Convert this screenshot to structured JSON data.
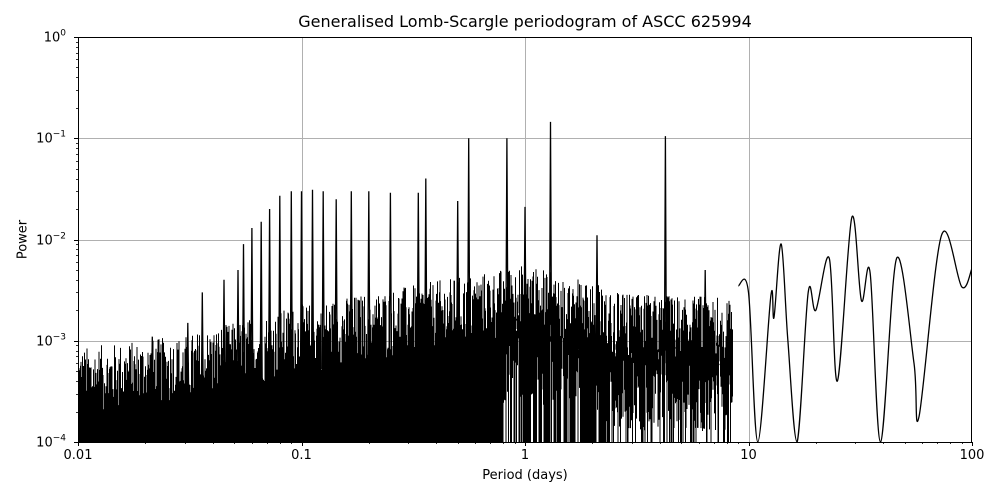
{
  "chart": {
    "title": "Generalised Lomb-Scargle periodogram of ASCC 625994",
    "xlabel": "Period (days)",
    "ylabel": "Power",
    "xticks": [
      {
        "value": 0.01,
        "label": "0.01"
      },
      {
        "value": 0.1,
        "label": "0.1"
      },
      {
        "value": 1,
        "label": "1"
      },
      {
        "value": 10,
        "label": "10"
      },
      {
        "value": 100,
        "label": "100"
      }
    ],
    "yticks": [
      {
        "value": 1,
        "base": "10",
        "exp": "0"
      },
      {
        "value": 0.1,
        "base": "10",
        "exp": "−1"
      },
      {
        "value": 0.01,
        "base": "10",
        "exp": "−2"
      },
      {
        "value": 0.001,
        "base": "10",
        "exp": "−3"
      },
      {
        "value": 0.0001,
        "base": "10",
        "exp": "−4"
      }
    ]
  },
  "chart_data": {
    "type": "line",
    "title": "Generalised Lomb-Scargle periodogram of ASCC 625994",
    "xlabel": "Period (days)",
    "ylabel": "Power",
    "xscale": "log",
    "yscale": "log",
    "xlim": [
      0.01,
      100
    ],
    "ylim": [
      0.0001,
      1
    ],
    "grid": true,
    "line_color": "#000000",
    "grid_color": "#b0b0b0",
    "noise_floor_trend": [
      {
        "period": 0.01,
        "power": 0.0003
      },
      {
        "period": 0.03,
        "power": 0.0004
      },
      {
        "period": 0.1,
        "power": 0.0008
      },
      {
        "period": 0.5,
        "power": 0.0015
      },
      {
        "period": 1.0,
        "power": 0.002
      },
      {
        "period": 3.0,
        "power": 0.001
      }
    ],
    "alias_peaks": [
      {
        "period": 0.0215,
        "power": 0.0011
      },
      {
        "period": 0.031,
        "power": 0.0015
      },
      {
        "period": 0.036,
        "power": 0.003
      },
      {
        "period": 0.045,
        "power": 0.004
      },
      {
        "period": 0.052,
        "power": 0.005
      },
      {
        "period": 0.055,
        "power": 0.009
      },
      {
        "period": 0.06,
        "power": 0.013
      },
      {
        "period": 0.066,
        "power": 0.015
      },
      {
        "period": 0.072,
        "power": 0.02
      },
      {
        "period": 0.08,
        "power": 0.027
      },
      {
        "period": 0.09,
        "power": 0.03
      },
      {
        "period": 0.1,
        "power": 0.03
      },
      {
        "period": 0.112,
        "power": 0.031
      },
      {
        "period": 0.125,
        "power": 0.03
      },
      {
        "period": 0.143,
        "power": 0.025
      },
      {
        "period": 0.167,
        "power": 0.03
      },
      {
        "period": 0.2,
        "power": 0.03
      },
      {
        "period": 0.25,
        "power": 0.029
      },
      {
        "period": 0.333,
        "power": 0.029
      },
      {
        "period": 0.36,
        "power": 0.04
      },
      {
        "period": 0.5,
        "power": 0.024
      },
      {
        "period": 0.56,
        "power": 0.1
      },
      {
        "period": 0.83,
        "power": 0.1
      },
      {
        "period": 1.0,
        "power": 0.021
      },
      {
        "period": 1.3,
        "power": 0.145
      },
      {
        "period": 2.1,
        "power": 0.011
      },
      {
        "period": 4.25,
        "power": 0.105
      },
      {
        "period": 6.4,
        "power": 0.005
      }
    ],
    "smooth_segment": [
      {
        "period": 9.0,
        "power": 0.0035
      },
      {
        "period": 10.0,
        "power": 0.003
      },
      {
        "period": 11.0,
        "power": 0.0001
      },
      {
        "period": 12.6,
        "power": 0.0028
      },
      {
        "period": 13.0,
        "power": 0.0017
      },
      {
        "period": 14.0,
        "power": 0.009
      },
      {
        "period": 15.0,
        "power": 0.001
      },
      {
        "period": 16.5,
        "power": 0.0001
      },
      {
        "period": 18.5,
        "power": 0.003
      },
      {
        "period": 20.0,
        "power": 0.002
      },
      {
        "period": 23.0,
        "power": 0.0065
      },
      {
        "period": 25.0,
        "power": 0.0004
      },
      {
        "period": 29.0,
        "power": 0.0165
      },
      {
        "period": 32.0,
        "power": 0.0025
      },
      {
        "period": 35.0,
        "power": 0.0047
      },
      {
        "period": 39.0,
        "power": 0.0001
      },
      {
        "period": 46.0,
        "power": 0.0065
      },
      {
        "period": 55.0,
        "power": 0.0006
      },
      {
        "period": 58.0,
        "power": 0.00018
      },
      {
        "period": 73.0,
        "power": 0.011
      },
      {
        "period": 90.0,
        "power": 0.0034
      },
      {
        "period": 100.0,
        "power": 0.0052
      }
    ]
  }
}
